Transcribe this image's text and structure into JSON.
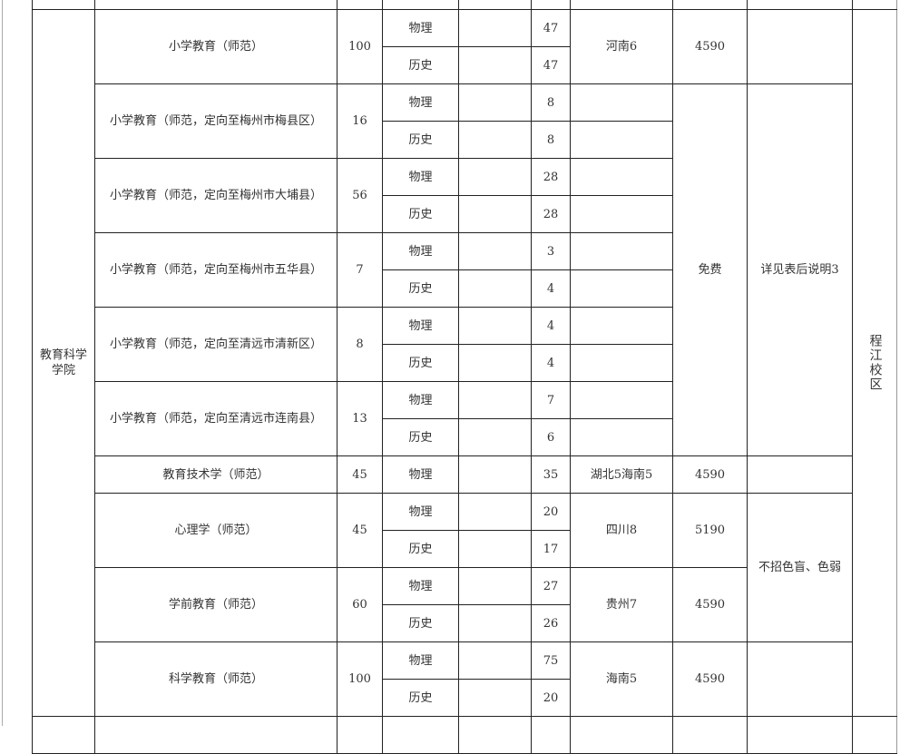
{
  "college": "教育科学学院",
  "campus": "程江校区",
  "majors": [
    {
      "name": "小学教育（师范）",
      "plan": "100",
      "subjects": [
        {
          "subject": "物理",
          "count": "47"
        },
        {
          "subject": "历史",
          "count": "47"
        }
      ],
      "province": "河南6",
      "fee": "4590"
    },
    {
      "name": "小学教育（师范，定向至梅州市梅县区）",
      "plan": "16",
      "subjects": [
        {
          "subject": "物理",
          "count": "8"
        },
        {
          "subject": "历史",
          "count": "8"
        }
      ]
    },
    {
      "name": "小学教育（师范，定向至梅州市大埔县）",
      "plan": "56",
      "subjects": [
        {
          "subject": "物理",
          "count": "28"
        },
        {
          "subject": "历史",
          "count": "28"
        }
      ]
    },
    {
      "name": "小学教育（师范，定向至梅州市五华县）",
      "plan": "7",
      "subjects": [
        {
          "subject": "物理",
          "count": "3"
        },
        {
          "subject": "历史",
          "count": "4"
        }
      ]
    },
    {
      "name": "小学教育（师范，定向至清远市清新区）",
      "plan": "8",
      "subjects": [
        {
          "subject": "物理",
          "count": "4"
        },
        {
          "subject": "历史",
          "count": "4"
        }
      ]
    },
    {
      "name": "小学教育（师范，定向至清远市连南县）",
      "plan": "13",
      "subjects": [
        {
          "subject": "物理",
          "count": "7"
        },
        {
          "subject": "历史",
          "count": "6"
        }
      ]
    },
    {
      "name": "教育技术学（师范）",
      "plan": "45",
      "subjects": [
        {
          "subject": "物理",
          "count": "35"
        }
      ],
      "province": "湖北5海南5",
      "fee": "4590"
    },
    {
      "name": "心理学（师范）",
      "plan": "45",
      "subjects": [
        {
          "subject": "物理",
          "count": "20"
        },
        {
          "subject": "历史",
          "count": "17"
        }
      ],
      "province": "四川8",
      "fee": "5190"
    },
    {
      "name": "学前教育（师范）",
      "plan": "60",
      "subjects": [
        {
          "subject": "物理",
          "count": "27"
        },
        {
          "subject": "历史",
          "count": "26"
        }
      ],
      "province": "贵州7",
      "fee": "4590"
    },
    {
      "name": "科学教育（师范）",
      "plan": "100",
      "subjects": [
        {
          "subject": "物理",
          "count": "75"
        },
        {
          "subject": "历史",
          "count": "20"
        }
      ],
      "province": "海南5",
      "fee": "4590"
    }
  ],
  "free_fee": "免费",
  "notes": {
    "directed": "详见表后说明3",
    "color_blind": "不招色盲、色弱"
  }
}
